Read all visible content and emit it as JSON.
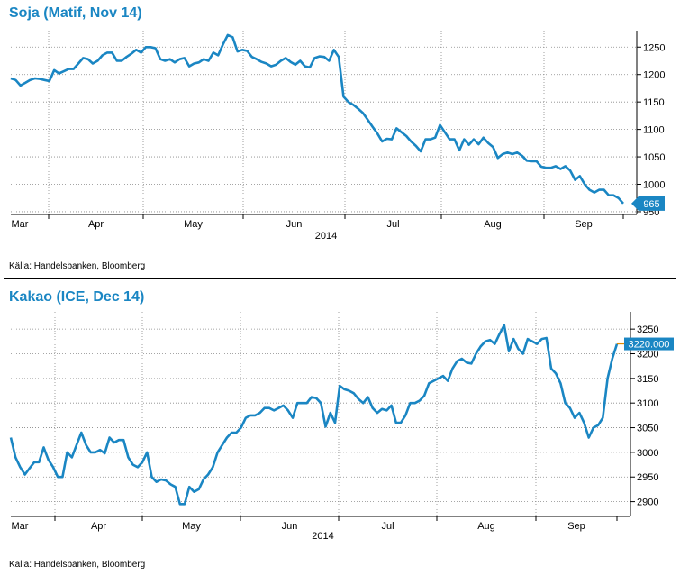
{
  "chart_data": [
    {
      "type": "line",
      "title": "Soja (Matif, Nov 14)",
      "source": "Källa: Handelsbanken, Bloomberg",
      "year_label": "2014",
      "x_tick_labels": [
        "Mar",
        "Apr",
        "May",
        "Jun",
        "Jul",
        "Aug",
        "Sep"
      ],
      "y_tick_labels": [
        "950",
        "1000",
        "1050",
        "1100",
        "1150",
        "1200",
        "1250"
      ],
      "ylim": [
        945,
        1280
      ],
      "last_value_label": "965",
      "last_value": 965,
      "line_color": "#1a86c3",
      "series": [
        {
          "name": "Soja",
          "values": [
            1193,
            1190,
            1180,
            1185,
            1190,
            1193,
            1192,
            1190,
            1188,
            1208,
            1202,
            1206,
            1210,
            1210,
            1220,
            1230,
            1228,
            1220,
            1225,
            1235,
            1240,
            1240,
            1225,
            1225,
            1232,
            1238,
            1245,
            1240,
            1250,
            1250,
            1248,
            1228,
            1225,
            1228,
            1222,
            1228,
            1230,
            1215,
            1220,
            1222,
            1228,
            1225,
            1240,
            1235,
            1255,
            1272,
            1268,
            1242,
            1245,
            1243,
            1232,
            1228,
            1223,
            1220,
            1215,
            1218,
            1225,
            1230,
            1223,
            1218,
            1225,
            1215,
            1213,
            1230,
            1233,
            1232,
            1225,
            1245,
            1232,
            1160,
            1150,
            1145,
            1138,
            1130,
            1118,
            1105,
            1093,
            1078,
            1083,
            1082,
            1102,
            1095,
            1088,
            1078,
            1070,
            1060,
            1082,
            1082,
            1085,
            1108,
            1095,
            1082,
            1082,
            1062,
            1082,
            1072,
            1082,
            1073,
            1085,
            1075,
            1068,
            1048,
            1055,
            1058,
            1055,
            1058,
            1052,
            1043,
            1042,
            1042,
            1032,
            1030,
            1030,
            1033,
            1028,
            1033,
            1025,
            1008,
            1015,
            1000,
            990,
            985,
            990,
            990,
            980,
            980,
            975,
            965
          ]
        }
      ]
    },
    {
      "type": "line",
      "title": "Kakao (ICE, Dec 14)",
      "source": "Källa: Handelsbanken, Bloomberg",
      "year_label": "2014",
      "x_tick_labels": [
        "Mar",
        "Apr",
        "May",
        "Jun",
        "Jul",
        "Aug",
        "Sep"
      ],
      "y_tick_labels": [
        "2900",
        "2950",
        "3000",
        "3050",
        "3100",
        "3150",
        "3200",
        "3250"
      ],
      "ylim": [
        2870,
        3285
      ],
      "last_value_label": "3220.000",
      "last_value": 3220,
      "line_color": "#1a86c3",
      "series": [
        {
          "name": "Kakao",
          "values": [
            3030,
            2990,
            2970,
            2955,
            2968,
            2980,
            2980,
            3010,
            2985,
            2970,
            2950,
            2950,
            3000,
            2990,
            3015,
            3040,
            3015,
            3000,
            3000,
            3005,
            2998,
            3030,
            3020,
            3025,
            3025,
            2990,
            2975,
            2970,
            2980,
            3000,
            2950,
            2940,
            2945,
            2943,
            2935,
            2930,
            2895,
            2895,
            2930,
            2920,
            2925,
            2945,
            2955,
            2970,
            3000,
            3015,
            3030,
            3040,
            3040,
            3050,
            3070,
            3075,
            3075,
            3080,
            3090,
            3090,
            3085,
            3090,
            3095,
            3085,
            3070,
            3100,
            3100,
            3100,
            3112,
            3110,
            3100,
            3052,
            3080,
            3060,
            3135,
            3128,
            3125,
            3120,
            3108,
            3100,
            3112,
            3090,
            3080,
            3088,
            3085,
            3095,
            3060,
            3060,
            3075,
            3100,
            3100,
            3105,
            3115,
            3140,
            3145,
            3150,
            3155,
            3145,
            3170,
            3185,
            3190,
            3182,
            3180,
            3200,
            3215,
            3225,
            3228,
            3220,
            3240,
            3258,
            3205,
            3230,
            3210,
            3200,
            3230,
            3225,
            3220,
            3230,
            3232,
            3170,
            3160,
            3140,
            3100,
            3090,
            3070,
            3080,
            3060,
            3030,
            3050,
            3055,
            3070,
            3150,
            3190,
            3220
          ]
        }
      ]
    }
  ]
}
